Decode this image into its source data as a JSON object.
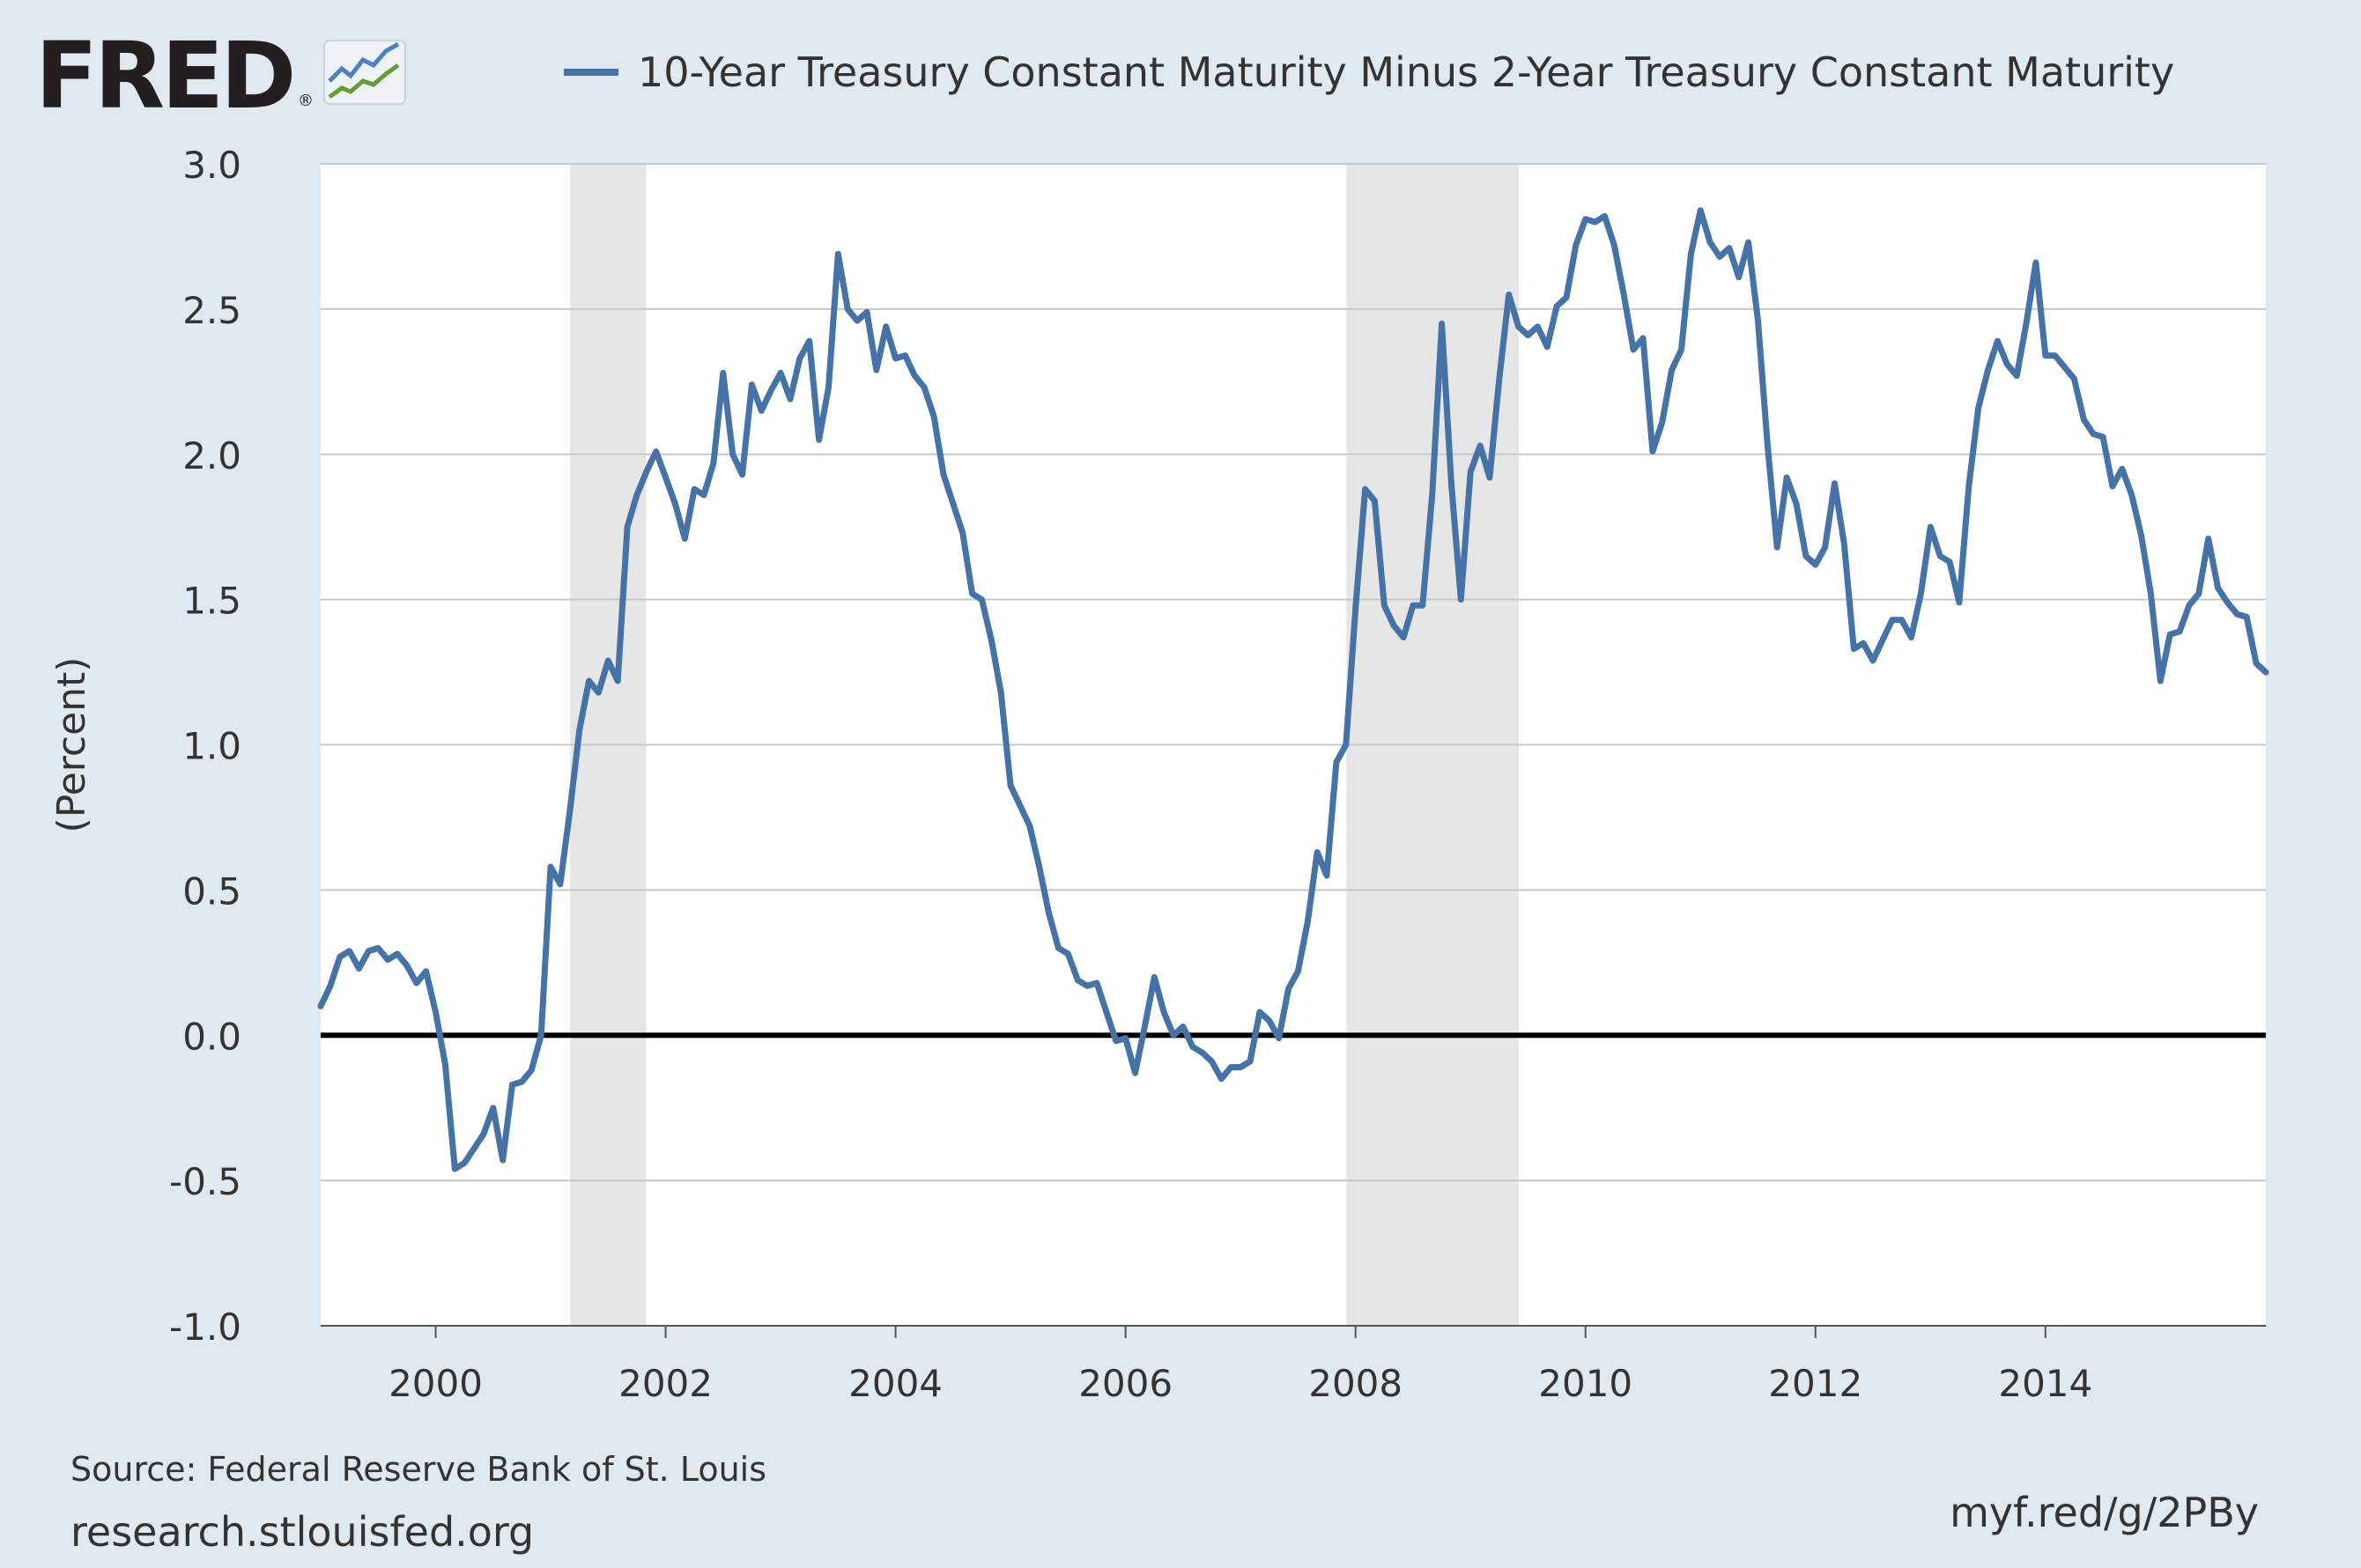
{
  "header": {
    "logo_text": "FRED",
    "logo_reg": "®",
    "legend_label": "10-Year Treasury Constant Maturity Minus 2-Year Treasury Constant Maturity"
  },
  "footer": {
    "source": "Source: Federal Reserve Bank of St. Louis",
    "site": "research.stlouisfed.org",
    "short_url": "myf.red/g/2PBy"
  },
  "colors": {
    "background": "#e1e9f0",
    "plot_bg": "#ffffff",
    "series": "#4572a7",
    "recession": "#e6e6e6",
    "grid": "#c8c8c8",
    "zero_line": "#000000"
  },
  "chart_data": {
    "type": "line",
    "title": "",
    "xlabel": "",
    "ylabel": "(Percent)",
    "xlim": [
      1999.0,
      2015.917
    ],
    "ylim": [
      -1.0,
      3.0
    ],
    "y_ticks": [
      "-1.0",
      "-0.5",
      "0.0",
      "0.5",
      "1.0",
      "1.5",
      "2.0",
      "2.5",
      "3.0"
    ],
    "y_tick_values": [
      -1.0,
      -0.5,
      0.0,
      0.5,
      1.0,
      1.5,
      2.0,
      2.5,
      3.0
    ],
    "x_ticks": [
      "2000",
      "2002",
      "2004",
      "2006",
      "2008",
      "2010",
      "2012",
      "2014"
    ],
    "x_tick_values": [
      2000,
      2002,
      2004,
      2006,
      2008,
      2010,
      2012,
      2014
    ],
    "recessions": [
      [
        2001.17,
        2001.83
      ],
      [
        2007.92,
        2009.42
      ]
    ],
    "series": [
      {
        "name": "10-Year Treasury Constant Maturity Minus 2-Year Treasury Constant Maturity",
        "start": 1999.0,
        "step_months": 1,
        "values": [
          0.1,
          0.17,
          0.27,
          0.29,
          0.23,
          0.29,
          0.3,
          0.26,
          0.28,
          0.24,
          0.18,
          0.22,
          0.08,
          -0.1,
          -0.46,
          -0.44,
          -0.39,
          -0.34,
          -0.25,
          -0.43,
          -0.17,
          -0.16,
          -0.12,
          0.0,
          0.58,
          0.52,
          0.77,
          1.05,
          1.22,
          1.18,
          1.29,
          1.22,
          1.75,
          1.86,
          1.94,
          2.01,
          1.92,
          1.83,
          1.71,
          1.88,
          1.86,
          1.97,
          2.28,
          2.0,
          1.93,
          2.24,
          2.15,
          2.22,
          2.28,
          2.19,
          2.33,
          2.39,
          2.05,
          2.23,
          2.69,
          2.5,
          2.46,
          2.49,
          2.29,
          2.44,
          2.33,
          2.34,
          2.27,
          2.23,
          2.13,
          1.93,
          1.83,
          1.73,
          1.52,
          1.5,
          1.36,
          1.18,
          0.86,
          0.79,
          0.72,
          0.58,
          0.42,
          0.3,
          0.28,
          0.19,
          0.17,
          0.18,
          0.08,
          -0.02,
          -0.01,
          -0.13,
          0.03,
          0.2,
          0.08,
          0.0,
          0.03,
          -0.04,
          -0.06,
          -0.09,
          -0.15,
          -0.11,
          -0.11,
          -0.09,
          0.08,
          0.05,
          -0.01,
          0.16,
          0.22,
          0.39,
          0.63,
          0.55,
          0.94,
          1.0,
          1.47,
          1.88,
          1.84,
          1.48,
          1.41,
          1.37,
          1.48,
          1.48,
          1.86,
          2.45,
          1.9,
          1.5,
          1.94,
          2.03,
          1.92,
          2.26,
          2.55,
          2.44,
          2.41,
          2.44,
          2.37,
          2.51,
          2.54,
          2.72,
          2.81,
          2.8,
          2.82,
          2.72,
          2.55,
          2.36,
          2.4,
          2.01,
          2.11,
          2.29,
          2.36,
          2.69,
          2.84,
          2.73,
          2.68,
          2.71,
          2.61,
          2.73,
          2.46,
          2.03,
          1.68,
          1.92,
          1.83,
          1.65,
          1.62,
          1.68,
          1.9,
          1.69,
          1.33,
          1.35,
          1.29,
          1.36,
          1.43,
          1.43,
          1.37,
          1.52,
          1.75,
          1.65,
          1.63,
          1.49,
          1.89,
          2.16,
          2.29,
          2.39,
          2.31,
          2.27,
          2.45,
          2.66,
          2.34,
          2.34,
          2.3,
          2.26,
          2.12,
          2.07,
          2.06,
          1.89,
          1.95,
          1.86,
          1.72,
          1.52,
          1.22,
          1.38,
          1.39,
          1.48,
          1.52,
          1.71,
          1.54,
          1.49,
          1.45,
          1.44,
          1.28,
          1.25
        ]
      }
    ]
  }
}
